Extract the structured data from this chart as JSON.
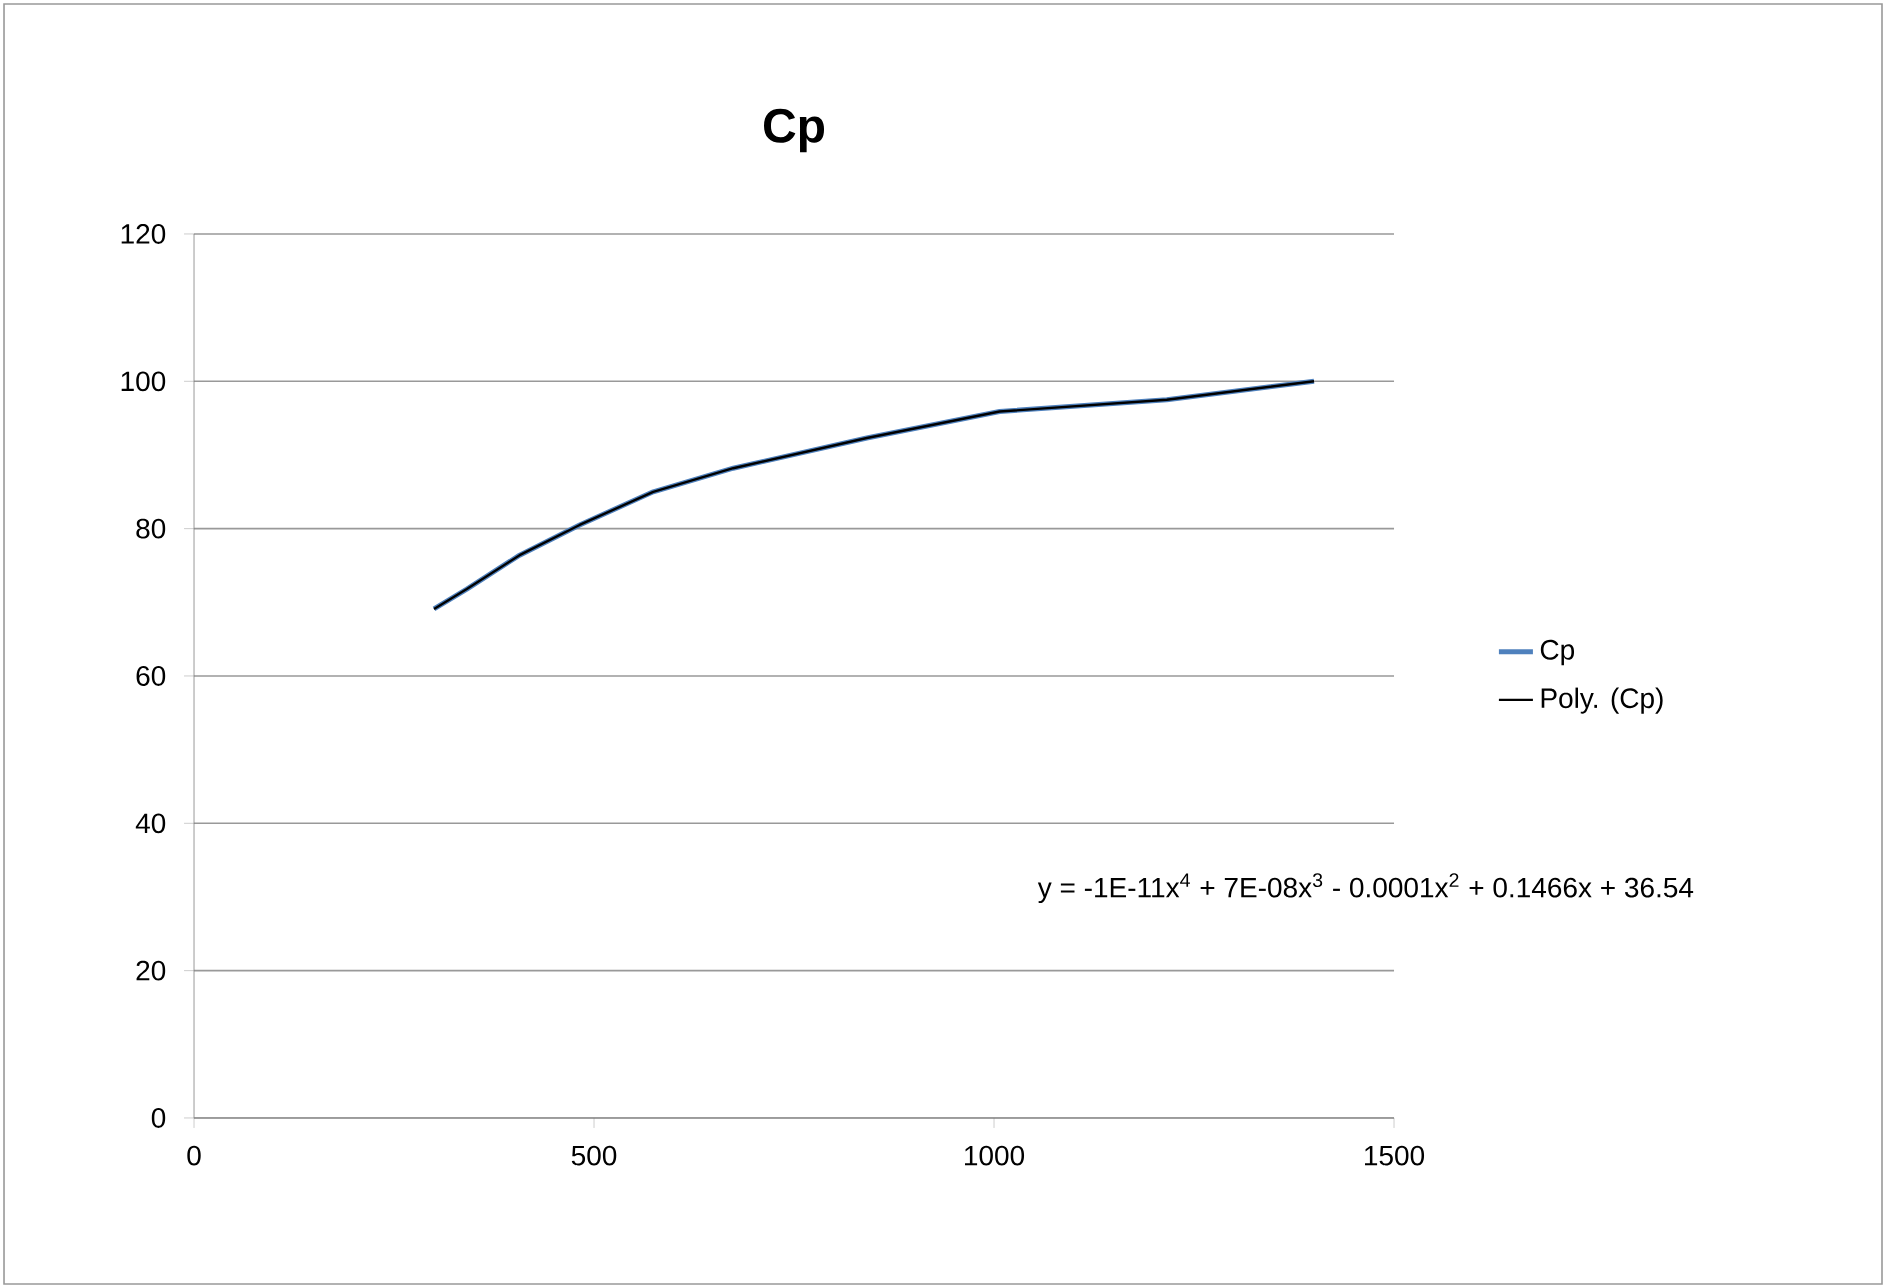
{
  "chart_data": {
    "type": "line",
    "title": "Cp",
    "xlim": [
      0,
      1500
    ],
    "xticks": [
      0,
      500,
      1000,
      1500
    ],
    "ylim": [
      0,
      120
    ],
    "yticks": [
      0,
      20,
      40,
      60,
      80,
      100,
      120
    ],
    "grid": "y",
    "legend": "right",
    "marker": "none",
    "line_style": "solid",
    "series": [
      {
        "name": "Cp",
        "color": "#4f81bd",
        "x": [
          300,
          341,
          407,
          482,
          574,
          674,
          841,
          1007,
          1216,
          1400
        ],
        "values": [
          69.1,
          71.8,
          76.4,
          80.5,
          85,
          88.2,
          92.3,
          95.9,
          97.5,
          100
        ]
      },
      {
        "name": "Poly. (Cp)",
        "type": "line",
        "color": "#000000",
        "x": [
          300,
          341,
          407,
          482,
          574,
          674,
          841,
          1007,
          1216,
          1400
        ],
        "values": [
          69.1,
          71.8,
          76.4,
          80.5,
          85,
          88.2,
          92.3,
          95.9,
          97.5,
          100
        ]
      }
    ],
    "annotations": [
      "y = -1E-11x$^{4}$ + 7E-08x$^{3}$ - 0.0001x$^{2}$ + 0.1466x + 36.54"
    ]
  }
}
